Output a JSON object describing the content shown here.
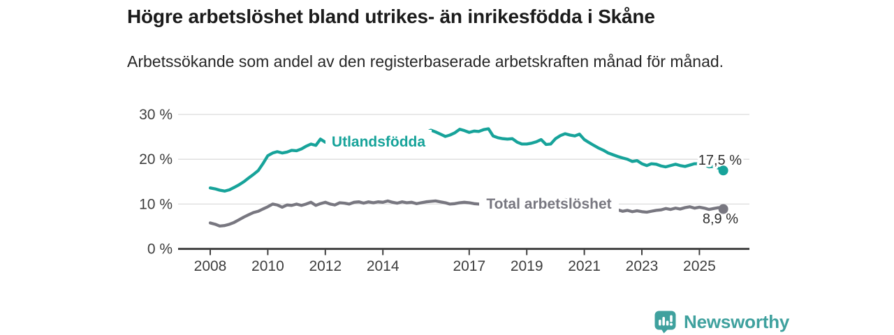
{
  "header": {
    "title": "Högre arbetslöshet bland utrikes- än inrikesfödda i Skåne",
    "subtitle": "Arbetssökande som andel av den registerbaserade arbetskraften månad för månad."
  },
  "footer": {
    "brand": "Newsworthy"
  },
  "colors": {
    "series_foreign_born": "#17A39A",
    "series_total": "#787780",
    "brand_teal": "#3FA19E",
    "grid": "#DCDCDC",
    "axis": "#404040",
    "tick_text": "#3D3D3D",
    "value_label_text": "#2D2D2D"
  },
  "chart_data": {
    "type": "line",
    "title": "Högre arbetslöshet bland utrikes- än inrikesfödda i Skåne",
    "subtitle": "Arbetssökande som andel av den registerbaserade arbetskraften månad för månad.",
    "xlabel": "",
    "ylabel": "",
    "ylim": [
      0,
      30
    ],
    "xlim": [
      2006.9,
      2026.7
    ],
    "grid": "horizontal",
    "legend_position": "inline-labels",
    "x_tick_years": [
      2008,
      2010,
      2012,
      2014,
      2017,
      2019,
      2021,
      2023,
      2025
    ],
    "x_tick_labels": [
      "2008",
      "2010",
      "2012",
      "2014",
      "2017",
      "2019",
      "2021",
      "2023",
      "2025"
    ],
    "y_tick_values": [
      0,
      10,
      20,
      30
    ],
    "y_tick_labels": [
      "0 %",
      "10 %",
      "20 %",
      "30 %"
    ],
    "series": [
      {
        "name": "Utlandsfödda",
        "color": "#17A39A",
        "end_label": "17,5 %",
        "end_value": 17.5,
        "points": [
          [
            2008.0,
            13.6
          ],
          [
            2008.17,
            13.4
          ],
          [
            2008.33,
            13.1
          ],
          [
            2008.5,
            12.9
          ],
          [
            2008.67,
            13.2
          ],
          [
            2008.83,
            13.7
          ],
          [
            2009.0,
            14.3
          ],
          [
            2009.17,
            15.0
          ],
          [
            2009.33,
            15.8
          ],
          [
            2009.5,
            16.6
          ],
          [
            2009.67,
            17.5
          ],
          [
            2009.83,
            19.0
          ],
          [
            2010.0,
            20.8
          ],
          [
            2010.17,
            21.4
          ],
          [
            2010.33,
            21.7
          ],
          [
            2010.5,
            21.4
          ],
          [
            2010.67,
            21.6
          ],
          [
            2010.83,
            22.0
          ],
          [
            2011.0,
            21.9
          ],
          [
            2011.17,
            22.3
          ],
          [
            2011.33,
            22.9
          ],
          [
            2011.5,
            23.4
          ],
          [
            2011.67,
            23.1
          ],
          [
            2011.83,
            24.5
          ],
          [
            2012.0,
            23.8
          ],
          [
            2012.17,
            23.6
          ],
          [
            2012.33,
            23.9
          ],
          [
            2012.5,
            24.2
          ],
          [
            2012.67,
            24.0
          ],
          [
            2012.83,
            24.3
          ],
          [
            2013.0,
            24.5
          ],
          [
            2013.17,
            24.3
          ],
          [
            2013.33,
            24.6
          ],
          [
            2013.5,
            24.8
          ],
          [
            2013.67,
            24.6
          ],
          [
            2013.83,
            24.9
          ],
          [
            2014.0,
            25.1
          ],
          [
            2014.17,
            24.9
          ],
          [
            2014.33,
            25.2
          ],
          [
            2014.5,
            25.4
          ],
          [
            2014.67,
            25.2
          ],
          [
            2014.83,
            25.5
          ],
          [
            2015.0,
            25.7
          ],
          [
            2015.17,
            25.5
          ],
          [
            2015.33,
            25.8
          ],
          [
            2015.5,
            26.0
          ],
          [
            2015.67,
            26.5
          ],
          [
            2015.83,
            26.1
          ],
          [
            2016.0,
            25.6
          ],
          [
            2016.17,
            25.1
          ],
          [
            2016.33,
            25.4
          ],
          [
            2016.5,
            25.9
          ],
          [
            2016.67,
            26.7
          ],
          [
            2016.83,
            26.4
          ],
          [
            2017.0,
            26.0
          ],
          [
            2017.17,
            26.3
          ],
          [
            2017.33,
            26.2
          ],
          [
            2017.5,
            26.6
          ],
          [
            2017.67,
            26.8
          ],
          [
            2017.83,
            25.2
          ],
          [
            2018.0,
            24.8
          ],
          [
            2018.17,
            24.6
          ],
          [
            2018.33,
            24.5
          ],
          [
            2018.5,
            24.6
          ],
          [
            2018.67,
            23.8
          ],
          [
            2018.83,
            23.4
          ],
          [
            2019.0,
            23.4
          ],
          [
            2019.17,
            23.6
          ],
          [
            2019.33,
            23.9
          ],
          [
            2019.5,
            24.4
          ],
          [
            2019.67,
            23.3
          ],
          [
            2019.83,
            23.4
          ],
          [
            2020.0,
            24.6
          ],
          [
            2020.17,
            25.3
          ],
          [
            2020.33,
            25.7
          ],
          [
            2020.5,
            25.4
          ],
          [
            2020.67,
            25.2
          ],
          [
            2020.83,
            25.6
          ],
          [
            2021.0,
            24.4
          ],
          [
            2021.17,
            23.7
          ],
          [
            2021.33,
            23.1
          ],
          [
            2021.5,
            22.5
          ],
          [
            2021.67,
            22.0
          ],
          [
            2021.83,
            21.4
          ],
          [
            2022.0,
            21.0
          ],
          [
            2022.17,
            20.6
          ],
          [
            2022.33,
            20.3
          ],
          [
            2022.5,
            20.0
          ],
          [
            2022.67,
            19.5
          ],
          [
            2022.83,
            19.7
          ],
          [
            2023.0,
            19.0
          ],
          [
            2023.17,
            18.6
          ],
          [
            2023.33,
            19.0
          ],
          [
            2023.5,
            18.9
          ],
          [
            2023.67,
            18.5
          ],
          [
            2023.83,
            18.3
          ],
          [
            2024.0,
            18.6
          ],
          [
            2024.17,
            18.9
          ],
          [
            2024.33,
            18.6
          ],
          [
            2024.5,
            18.4
          ],
          [
            2024.67,
            18.7
          ],
          [
            2024.83,
            19.0
          ],
          [
            2025.0,
            19.0
          ],
          [
            2025.17,
            18.8
          ],
          [
            2025.33,
            18.3
          ],
          [
            2025.5,
            18.4
          ],
          [
            2025.67,
            18.0
          ],
          [
            2025.83,
            17.5
          ]
        ]
      },
      {
        "name": "Total arbetslöshet",
        "color": "#787780",
        "end_label": "8,9 %",
        "end_value": 8.9,
        "points": [
          [
            2008.0,
            5.8
          ],
          [
            2008.17,
            5.5
          ],
          [
            2008.33,
            5.1
          ],
          [
            2008.5,
            5.2
          ],
          [
            2008.67,
            5.5
          ],
          [
            2008.83,
            5.9
          ],
          [
            2009.0,
            6.5
          ],
          [
            2009.17,
            7.1
          ],
          [
            2009.33,
            7.6
          ],
          [
            2009.5,
            8.1
          ],
          [
            2009.67,
            8.4
          ],
          [
            2009.83,
            8.9
          ],
          [
            2010.0,
            9.4
          ],
          [
            2010.17,
            10.0
          ],
          [
            2010.33,
            9.8
          ],
          [
            2010.5,
            9.3
          ],
          [
            2010.67,
            9.8
          ],
          [
            2010.83,
            9.7
          ],
          [
            2011.0,
            10.0
          ],
          [
            2011.17,
            9.7
          ],
          [
            2011.33,
            10.0
          ],
          [
            2011.5,
            10.4
          ],
          [
            2011.67,
            9.7
          ],
          [
            2011.83,
            10.1
          ],
          [
            2012.0,
            10.4
          ],
          [
            2012.17,
            10.0
          ],
          [
            2012.33,
            9.8
          ],
          [
            2012.5,
            10.3
          ],
          [
            2012.67,
            10.2
          ],
          [
            2012.83,
            10.0
          ],
          [
            2013.0,
            10.4
          ],
          [
            2013.17,
            10.5
          ],
          [
            2013.33,
            10.2
          ],
          [
            2013.5,
            10.5
          ],
          [
            2013.67,
            10.3
          ],
          [
            2013.83,
            10.5
          ],
          [
            2014.0,
            10.4
          ],
          [
            2014.17,
            10.7
          ],
          [
            2014.33,
            10.4
          ],
          [
            2014.5,
            10.2
          ],
          [
            2014.67,
            10.5
          ],
          [
            2014.83,
            10.3
          ],
          [
            2015.0,
            10.4
          ],
          [
            2015.17,
            10.1
          ],
          [
            2015.33,
            10.3
          ],
          [
            2015.5,
            10.5
          ],
          [
            2015.67,
            10.6
          ],
          [
            2015.83,
            10.7
          ],
          [
            2016.0,
            10.5
          ],
          [
            2016.17,
            10.3
          ],
          [
            2016.33,
            10.0
          ],
          [
            2016.5,
            10.1
          ],
          [
            2016.67,
            10.3
          ],
          [
            2016.83,
            10.4
          ],
          [
            2017.0,
            10.3
          ],
          [
            2017.17,
            10.1
          ],
          [
            2017.33,
            10.0
          ],
          [
            2017.5,
            10.1
          ],
          [
            2017.67,
            9.9
          ],
          [
            2017.83,
            9.7
          ],
          [
            2018.0,
            9.8
          ],
          [
            2018.17,
            9.6
          ],
          [
            2018.33,
            9.4
          ],
          [
            2018.5,
            9.5
          ],
          [
            2018.67,
            9.3
          ],
          [
            2018.83,
            9.2
          ],
          [
            2019.0,
            9.3
          ],
          [
            2019.17,
            9.2
          ],
          [
            2019.33,
            9.4
          ],
          [
            2019.5,
            9.5
          ],
          [
            2019.67,
            9.3
          ],
          [
            2019.83,
            9.5
          ],
          [
            2020.0,
            9.8
          ],
          [
            2020.17,
            10.6
          ],
          [
            2020.33,
            11.0
          ],
          [
            2020.5,
            10.9
          ],
          [
            2020.67,
            10.7
          ],
          [
            2020.83,
            10.5
          ],
          [
            2021.0,
            10.3
          ],
          [
            2021.17,
            10.0
          ],
          [
            2021.33,
            9.7
          ],
          [
            2021.5,
            9.4
          ],
          [
            2021.67,
            9.1
          ],
          [
            2021.83,
            8.8
          ],
          [
            2022.0,
            8.5
          ],
          [
            2022.17,
            8.7
          ],
          [
            2022.33,
            8.4
          ],
          [
            2022.5,
            8.6
          ],
          [
            2022.67,
            8.3
          ],
          [
            2022.83,
            8.5
          ],
          [
            2023.0,
            8.3
          ],
          [
            2023.17,
            8.2
          ],
          [
            2023.33,
            8.4
          ],
          [
            2023.5,
            8.6
          ],
          [
            2023.67,
            8.7
          ],
          [
            2023.83,
            9.0
          ],
          [
            2024.0,
            8.8
          ],
          [
            2024.17,
            9.1
          ],
          [
            2024.33,
            8.9
          ],
          [
            2024.5,
            9.2
          ],
          [
            2024.67,
            9.4
          ],
          [
            2024.83,
            9.1
          ],
          [
            2025.0,
            9.3
          ],
          [
            2025.17,
            9.1
          ],
          [
            2025.33,
            8.8
          ],
          [
            2025.5,
            9.0
          ],
          [
            2025.67,
            9.2
          ],
          [
            2025.83,
            8.9
          ]
        ]
      }
    ]
  }
}
